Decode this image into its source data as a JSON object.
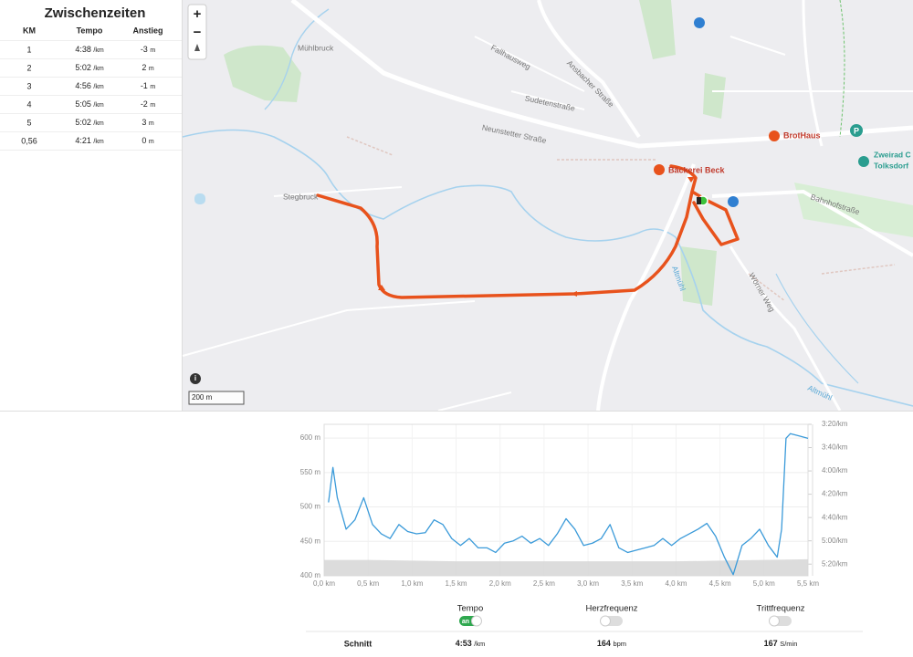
{
  "splits": {
    "title": "Zwischenzeiten",
    "columns": [
      "KM",
      "Tempo",
      "Anstieg"
    ],
    "rows": [
      {
        "km": "1",
        "pace": "4:38",
        "pace_unit": "/km",
        "climb": "-3",
        "climb_unit": "m"
      },
      {
        "km": "2",
        "pace": "5:02",
        "pace_unit": "/km",
        "climb": "2",
        "climb_unit": "m"
      },
      {
        "km": "3",
        "pace": "4:56",
        "pace_unit": "/km",
        "climb": "-1",
        "climb_unit": "m"
      },
      {
        "km": "4",
        "pace": "5:05",
        "pace_unit": "/km",
        "climb": "-2",
        "climb_unit": "m"
      },
      {
        "km": "5",
        "pace": "5:02",
        "pace_unit": "/km",
        "climb": "3",
        "climb_unit": "m"
      },
      {
        "km": "0,56",
        "pace": "4:21",
        "pace_unit": "/km",
        "climb": "0",
        "climb_unit": "m"
      }
    ]
  },
  "map": {
    "zoom_in": "+",
    "zoom_out": "−",
    "info": "i",
    "scale": "200 m",
    "labels": [
      "Mühlbruck",
      "Fallhausweg",
      "Ansbacher Straße",
      "Sudetenstraße",
      "Neunstetter Straße",
      "Stegbruck",
      "Bäckerei Beck",
      "BrotHaus",
      "Zweirad C",
      "Tolksdorf",
      "Bahnhofstraße",
      "Altmühl",
      "Wörner Weg",
      "Altmühl"
    ]
  },
  "chart_data": {
    "type": "line",
    "xlim": [
      0,
      5.5
    ],
    "xticks": [
      {
        "value": 0,
        "label": "0,0 km"
      },
      {
        "value": 0.5,
        "label": "0,5 km"
      },
      {
        "value": 1,
        "label": "1,0 km"
      },
      {
        "value": 1.5,
        "label": "1,5 km"
      },
      {
        "value": 2,
        "label": "2,0 km"
      },
      {
        "value": 2.5,
        "label": "2,5 km"
      },
      {
        "value": 3,
        "label": "3,0 km"
      },
      {
        "value": 3.5,
        "label": "3,5 km"
      },
      {
        "value": 4,
        "label": "4,0 km"
      },
      {
        "value": 4.5,
        "label": "4,5 km"
      },
      {
        "value": 5,
        "label": "5,0 km"
      },
      {
        "value": 5.5,
        "label": "5,5 km"
      }
    ],
    "ylim": [
      400,
      620
    ],
    "yticks": [
      {
        "value": 400,
        "label": "400 m"
      },
      {
        "value": 450,
        "label": "450 m"
      },
      {
        "value": 500,
        "label": "500 m"
      },
      {
        "value": 550,
        "label": "550 m"
      },
      {
        "value": 600,
        "label": "600 m"
      }
    ],
    "y2lim": [
      330,
      200
    ],
    "y2ticks": [
      {
        "value": 200,
        "label": "3:20/km"
      },
      {
        "value": 220,
        "label": "3:40/km"
      },
      {
        "value": 240,
        "label": "4:00/km"
      },
      {
        "value": 260,
        "label": "4:20/km"
      },
      {
        "value": 280,
        "label": "4:40/km"
      },
      {
        "value": 300,
        "label": "5:00/km"
      },
      {
        "value": 320,
        "label": "5:20/km"
      }
    ],
    "grid": true,
    "elevation": {
      "color": "#d6d6d6",
      "x": [
        0,
        0.5,
        1,
        1.5,
        2,
        2.5,
        3,
        3.5,
        4,
        4.5,
        5,
        5.5
      ],
      "values": [
        423,
        423,
        422,
        421,
        421,
        421,
        421,
        421,
        421,
        422,
        423,
        424
      ]
    },
    "series": [
      {
        "color": "#3a9ad9",
        "axis": "y2",
        "x": [
          0.05,
          0.1,
          0.15,
          0.25,
          0.35,
          0.45,
          0.55,
          0.65,
          0.75,
          0.85,
          0.95,
          1.05,
          1.15,
          1.25,
          1.35,
          1.45,
          1.55,
          1.65,
          1.75,
          1.85,
          1.95,
          2.05,
          2.15,
          2.25,
          2.35,
          2.45,
          2.55,
          2.65,
          2.75,
          2.85,
          2.95,
          3.05,
          3.15,
          3.25,
          3.35,
          3.45,
          3.55,
          3.65,
          3.75,
          3.85,
          3.95,
          4.05,
          4.15,
          4.25,
          4.35,
          4.45,
          4.55,
          4.65,
          4.75,
          4.85,
          4.95,
          5.05,
          5.15,
          5.2,
          5.25,
          5.3,
          5.4,
          5.5
        ],
        "values": [
          267,
          237,
          263,
          290,
          282,
          263,
          286,
          294,
          298,
          286,
          292,
          294,
          293,
          282,
          286,
          298,
          304,
          298,
          306,
          306,
          310,
          302,
          300,
          296,
          302,
          298,
          304,
          294,
          281,
          290,
          304,
          302,
          298,
          286,
          306,
          310,
          308,
          306,
          304,
          298,
          304,
          298,
          294,
          290,
          285,
          296,
          314,
          329,
          304,
          298,
          290,
          304,
          314,
          290,
          212,
          208,
          210,
          212
        ]
      }
    ],
    "legend": [
      {
        "name": "Tempo",
        "on": true,
        "state_label": "an",
        "color": "#2fa84f"
      },
      {
        "name": "Herzfrequenz",
        "on": false
      },
      {
        "name": "Trittfrequenz",
        "on": false
      }
    ]
  },
  "summary": {
    "label": "Schnitt",
    "items": [
      {
        "value": "4:53",
        "unit": "/km"
      },
      {
        "value": "164",
        "unit": "bpm"
      },
      {
        "value": "167",
        "unit": "S/min"
      }
    ]
  }
}
